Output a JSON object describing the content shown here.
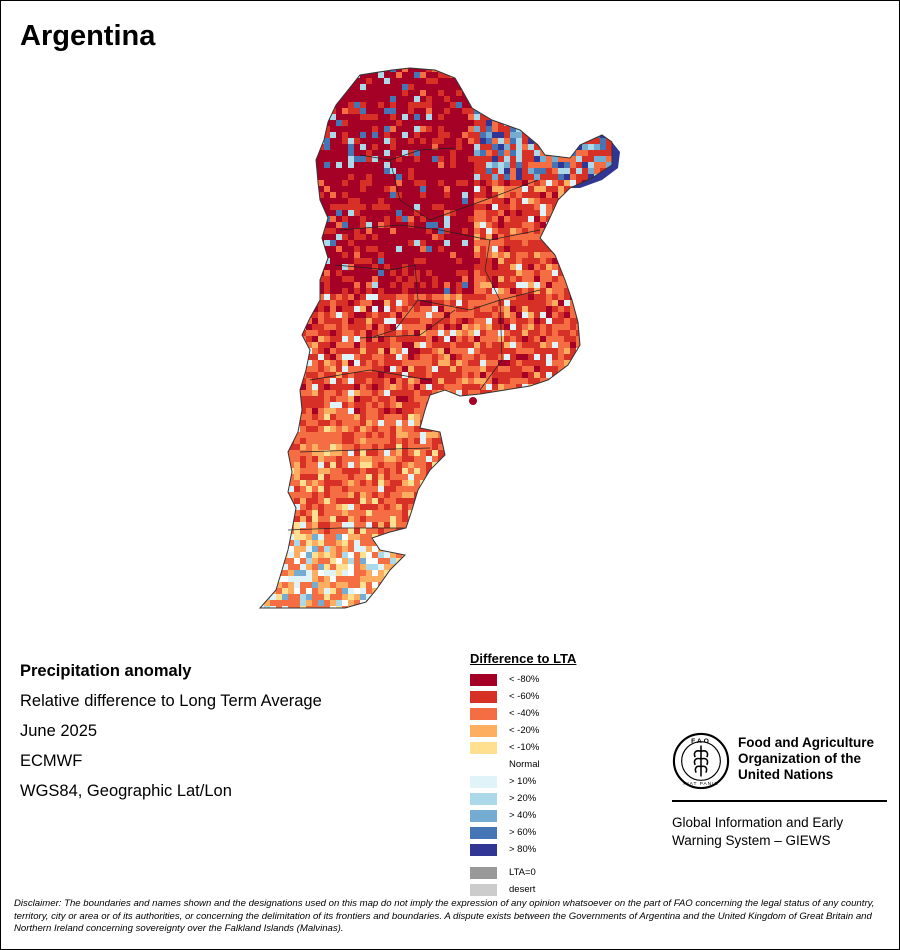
{
  "title": "Argentina",
  "info": {
    "heading": "Precipitation anomaly",
    "subtitle": "Relative difference to Long Term Average",
    "period": "June 2025",
    "source": "ECMWF",
    "projection": "WGS84, Geographic Lat/Lon"
  },
  "legend": {
    "title": "Difference to LTA",
    "items": [
      {
        "label": "< -80%",
        "color": "#a50026"
      },
      {
        "label": "< -60%",
        "color": "#d73027"
      },
      {
        "label": "< -40%",
        "color": "#f46d43"
      },
      {
        "label": "< -20%",
        "color": "#fdae61"
      },
      {
        "label": "< -10%",
        "color": "#fee090"
      },
      {
        "label": "Normal",
        "color": "#ffffff"
      },
      {
        "label": "> 10%",
        "color": "#e0f3f8"
      },
      {
        "label": "> 20%",
        "color": "#abd9e9"
      },
      {
        "label": "> 40%",
        "color": "#74add1"
      },
      {
        "label": "> 60%",
        "color": "#4575b4"
      },
      {
        "label": "> 80%",
        "color": "#313695"
      }
    ],
    "extra": [
      {
        "label": "LTA=0",
        "color": "#999999"
      },
      {
        "label": "desert",
        "color": "#cccccc"
      }
    ]
  },
  "fao": {
    "name_line1": "Food and Agriculture",
    "name_line2": "Organization of the",
    "name_line3": "United Nations",
    "logo_letters": "FAO",
    "logo_motto": "FIAT PANIS",
    "giews_line1": "Global Information and Early",
    "giews_line2": "Warning System – GIEWS"
  },
  "disclaimer": "Disclaimer: The boundaries and names shown and the designations used on this map do not imply the expression of any opinion whatsoever on the part of FAO concerning the legal status of any country, territory, city or area or of its authorities, or concerning the delimitation of its frontiers and boundaries. A dispute exists between the Governments of Argentina and the United Kingdom of Great Britain and Northern Ireland concerning sovereignty over the Falkland Islands (Malvinas).",
  "map": {
    "region": "Argentina",
    "palette": {
      "extreme_dry": "#a50026",
      "very_dry": "#d73027",
      "dry": "#f46d43",
      "moderate_dry": "#fdae61",
      "slight_dry": "#fee090",
      "normal": "#ffffff",
      "slight_wet": "#e0f3f8",
      "wet": "#abd9e9",
      "moderate_wet": "#74add1",
      "very_wet": "#4575b4",
      "extreme_wet": "#313695"
    }
  }
}
